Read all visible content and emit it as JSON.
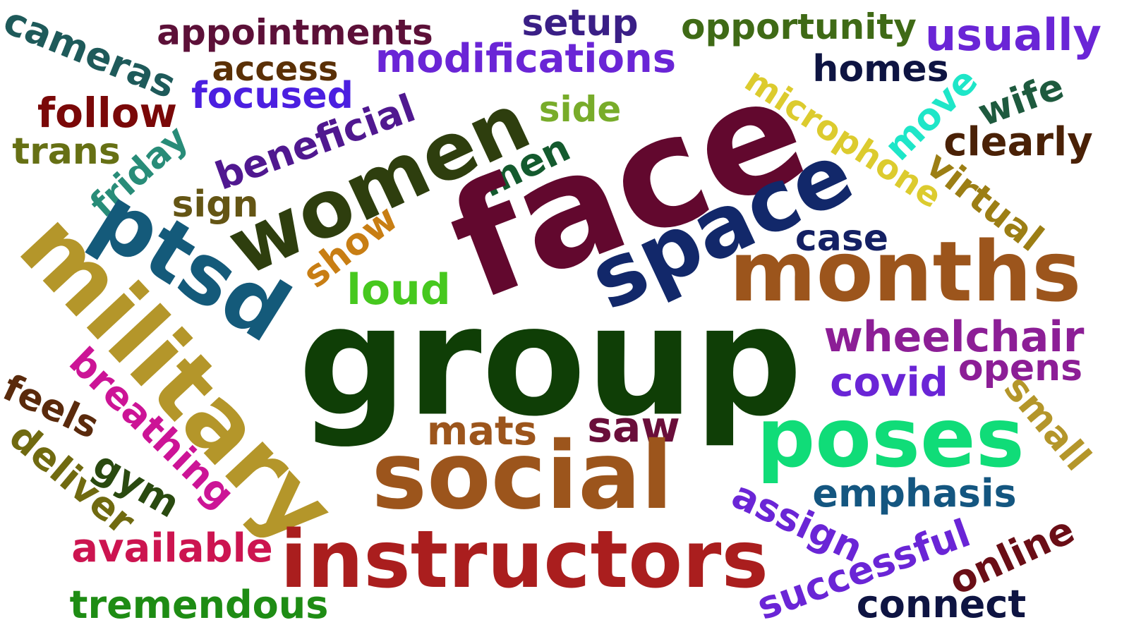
{
  "word_cloud": {
    "background": "#ffffff",
    "words": {
      "group": {
        "text": "group",
        "color": "#0f3e06"
      },
      "face": {
        "text": "face",
        "color": "#62082e"
      },
      "social": {
        "text": "social",
        "color": "#9c551c"
      },
      "military": {
        "text": "military",
        "color": "#b4962a"
      },
      "months": {
        "text": "months",
        "color": "#9c551c"
      },
      "space": {
        "text": "space",
        "color": "#12286a"
      },
      "poses": {
        "text": "poses",
        "color": "#10dc78"
      },
      "instructors": {
        "text": "instructors",
        "color": "#aa1e1e"
      },
      "women": {
        "text": "women",
        "color": "#2e3e0e"
      },
      "ptsd": {
        "text": "ptsd",
        "color": "#145a7a"
      },
      "wheelchair": {
        "text": "wheelchair",
        "color": "#8c1e96"
      },
      "modifications": {
        "text": "modifications",
        "color": "#6a25d6"
      },
      "appointments": {
        "text": "appointments",
        "color": "#5c1038"
      },
      "opportunity": {
        "text": "opportunity",
        "color": "#3f6a16"
      },
      "usually": {
        "text": "usually",
        "color": "#6a25d6"
      },
      "cameras": {
        "text": "cameras",
        "color": "#1e5a5a"
      },
      "setup": {
        "text": "setup",
        "color": "#3a1f86"
      },
      "access": {
        "text": "access",
        "color": "#5a3006"
      },
      "homes": {
        "text": "homes",
        "color": "#0e1442"
      },
      "focused": {
        "text": "focused",
        "color": "#4b1fe0"
      },
      "follow": {
        "text": "follow",
        "color": "#7a0808"
      },
      "side": {
        "text": "side",
        "color": "#78ac2a"
      },
      "microphone": {
        "text": "microphone",
        "color": "#dccb2e"
      },
      "move": {
        "text": "move",
        "color": "#1ee6c8"
      },
      "wife": {
        "text": "wife",
        "color": "#1e5a3e"
      },
      "clearly": {
        "text": "clearly",
        "color": "#4a2106"
      },
      "trans": {
        "text": "trans",
        "color": "#667014"
      },
      "beneficial": {
        "text": "beneficial",
        "color": "#501890"
      },
      "friday": {
        "text": "friday",
        "color": "#288c78"
      },
      "men": {
        "text": "men",
        "color": "#145a2e"
      },
      "virtual": {
        "text": "virtual",
        "color": "#9c7e14"
      },
      "sign": {
        "text": "sign",
        "color": "#645514"
      },
      "case": {
        "text": "case",
        "color": "#142064"
      },
      "show": {
        "text": "show",
        "color": "#c87e14"
      },
      "loud": {
        "text": "loud",
        "color": "#46c81e"
      },
      "opens": {
        "text": "opens",
        "color": "#8c1e96"
      },
      "covid": {
        "text": "covid",
        "color": "#6a25d6"
      },
      "breathing": {
        "text": "breathing",
        "color": "#cc1496"
      },
      "small": {
        "text": "small",
        "color": "#b4962a"
      },
      "feels": {
        "text": "feels",
        "color": "#5a2a0c"
      },
      "mats": {
        "text": "mats",
        "color": "#9c551c"
      },
      "saw": {
        "text": "saw",
        "color": "#6a0e3a"
      },
      "deliver": {
        "text": "deliver",
        "color": "#706a10"
      },
      "gym": {
        "text": "gym",
        "color": "#2a4a10"
      },
      "emphasis": {
        "text": "emphasis",
        "color": "#145680"
      },
      "assign": {
        "text": "assign",
        "color": "#6a25d6"
      },
      "available": {
        "text": "available",
        "color": "#cc1450"
      },
      "successful": {
        "text": "successful",
        "color": "#6a25d6"
      },
      "online": {
        "text": "online",
        "color": "#6a0e16"
      },
      "tremendous": {
        "text": "tremendous",
        "color": "#1e8c14"
      },
      "connect": {
        "text": "connect",
        "color": "#0e1442"
      }
    }
  }
}
